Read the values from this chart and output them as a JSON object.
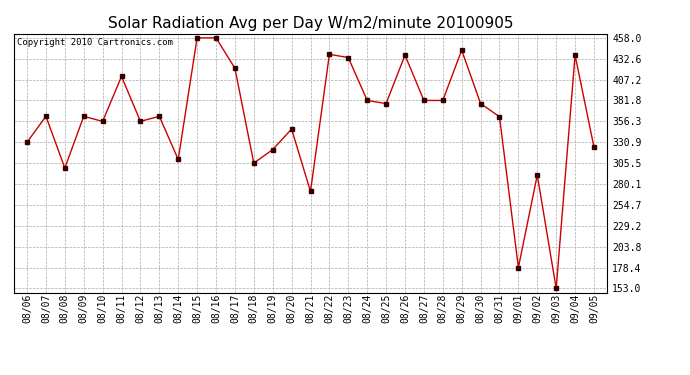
{
  "title": "Solar Radiation Avg per Day W/m2/minute 20100905",
  "copyright": "Copyright 2010 Cartronics.com",
  "dates": [
    "08/06",
    "08/07",
    "08/08",
    "08/09",
    "08/10",
    "08/11",
    "08/12",
    "08/13",
    "08/14",
    "08/15",
    "08/16",
    "08/17",
    "08/18",
    "08/19",
    "08/20",
    "08/21",
    "08/22",
    "08/23",
    "08/24",
    "08/25",
    "08/26",
    "08/27",
    "08/28",
    "08/29",
    "08/30",
    "08/31",
    "09/01",
    "09/02",
    "09/03",
    "09/04",
    "09/05"
  ],
  "values": [
    330.9,
    362.5,
    299.5,
    362.5,
    356.3,
    411.0,
    356.3,
    362.5,
    310.0,
    458.0,
    458.0,
    421.0,
    305.5,
    322.0,
    347.0,
    271.0,
    438.0,
    434.0,
    381.8,
    378.0,
    437.0,
    381.8,
    381.8,
    443.0,
    378.0,
    362.0,
    178.4,
    291.0,
    153.0,
    437.0,
    325.0
  ],
  "line_color": "#cc0000",
  "marker_color": "#330000",
  "bg_color": "#ffffff",
  "grid_color": "#aaaaaa",
  "ylim_min": 148.0,
  "ylim_max": 463.0,
  "yticks": [
    153.0,
    178.4,
    203.8,
    229.2,
    254.7,
    280.1,
    305.5,
    330.9,
    356.3,
    381.8,
    407.2,
    432.6,
    458.0
  ],
  "title_fontsize": 11,
  "label_fontsize": 7,
  "copyright_fontsize": 6.5,
  "fig_width": 6.9,
  "fig_height": 3.75,
  "dpi": 100
}
